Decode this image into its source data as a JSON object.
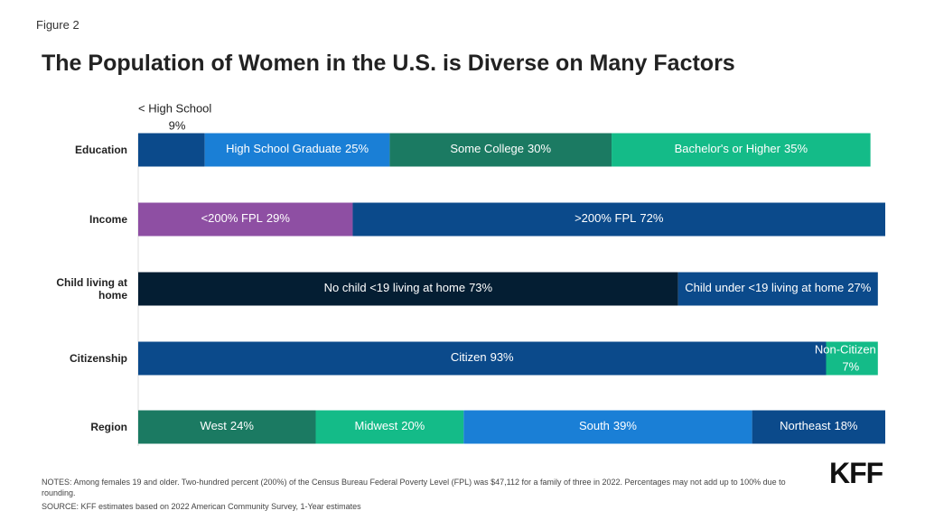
{
  "figure_label": "Figure 2",
  "chart_data": {
    "type": "stacked-bar",
    "title": "The Population of Women in the U.S. is Diverse on Many Factors",
    "rows": [
      {
        "label": "Education",
        "segments": [
          "< High School",
          "High School Graduate",
          "Some College",
          "Bachelor's or Higher"
        ],
        "values": [
          9,
          25,
          30,
          35
        ],
        "value_labels": [
          "9%",
          "25%",
          "30%",
          "35%"
        ],
        "colors": [
          "#0b4a8b",
          "#1a7fd6",
          "#1b7a62",
          "#14bb88"
        ]
      },
      {
        "label": "Income",
        "segments": [
          "<200% FPL",
          ">200% FPL"
        ],
        "values": [
          29,
          72
        ],
        "value_labels": [
          "29%",
          "72%"
        ],
        "colors": [
          "#8e4fa3",
          "#0b4a8b"
        ]
      },
      {
        "label": "Child living at home",
        "segments": [
          "No child <19 living at home",
          "Child under <19 living at home"
        ],
        "values": [
          73,
          27
        ],
        "value_labels": [
          "73%",
          "27%"
        ],
        "colors": [
          "#041e33",
          "#0b4a8b"
        ]
      },
      {
        "label": "Citizenship",
        "segments": [
          "Citizen",
          "Non-Citizen"
        ],
        "values": [
          93,
          7
        ],
        "value_labels": [
          "93%",
          "7%"
        ],
        "colors": [
          "#0b4a8b",
          "#14bb88"
        ]
      },
      {
        "label": "Region",
        "segments": [
          "West",
          "Midwest",
          "South",
          "Northeast"
        ],
        "values": [
          24,
          20,
          39,
          18
        ],
        "value_labels": [
          "24%",
          "20%",
          "39%",
          "18%"
        ],
        "colors": [
          "#1b7a62",
          "#14bb88",
          "#1a7fd6",
          "#0b4a8b"
        ]
      }
    ]
  },
  "notes": "NOTES: Among females 19 and older. Two-hundred percent (200%) of the Census Bureau Federal Poverty Level (FPL) was $47,112 for a family of three in 2022. Percentages may not add up to 100% due to rounding.",
  "source": "SOURCE: KFF estimates based on 2022 American Community Survey, 1-Year estimates",
  "logo": "KFF"
}
